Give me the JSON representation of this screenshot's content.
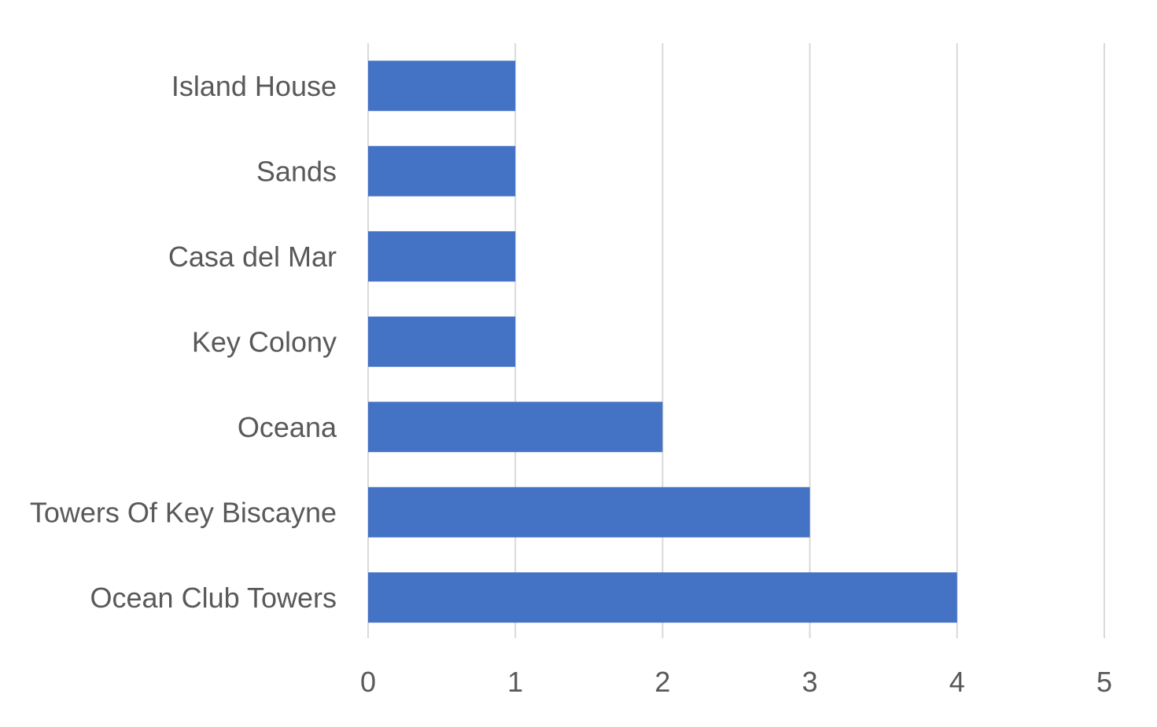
{
  "chart_data": {
    "type": "bar",
    "orientation": "horizontal",
    "title": "",
    "xlabel": "",
    "ylabel": "",
    "categories": [
      "Ocean Club Towers",
      "Towers Of Key Biscayne",
      "Oceana",
      "Key Colony",
      "Casa del Mar",
      "Sands",
      "Island House"
    ],
    "values": [
      4,
      3,
      2,
      1,
      1,
      1,
      1
    ],
    "xlim": [
      0,
      5
    ],
    "x_ticks": [
      "0",
      "1",
      "2",
      "3",
      "4",
      "5"
    ],
    "grid": "vertical",
    "legend": "none",
    "bar_color": "#4472C4",
    "grid_color": "#d9d9d9",
    "text_color": "#595959"
  }
}
